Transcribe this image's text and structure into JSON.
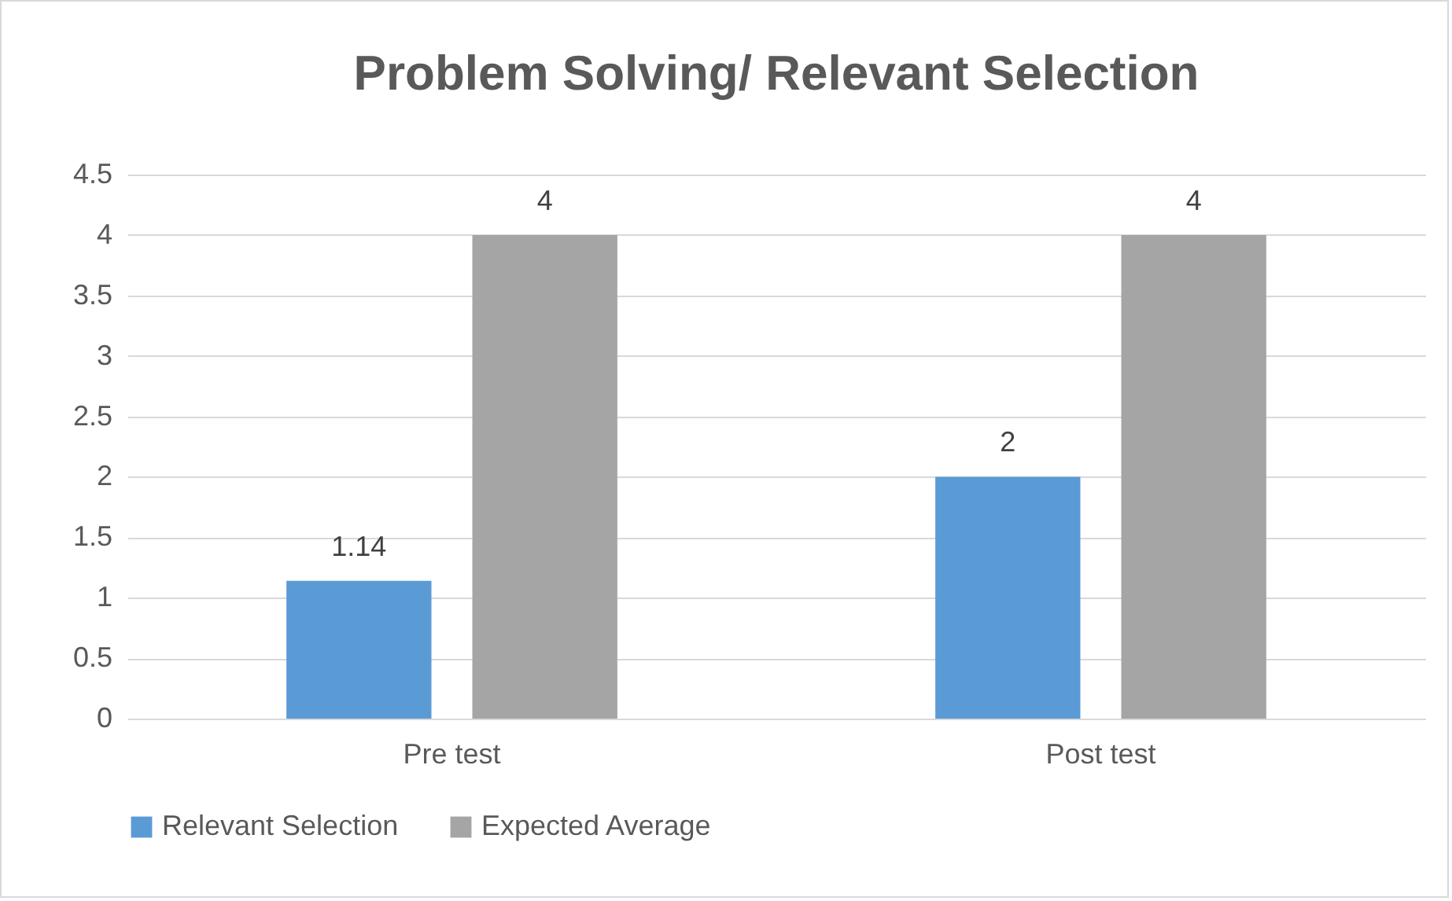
{
  "chart_data": {
    "type": "bar",
    "title": "Problem Solving/ Relevant Selection",
    "categories": [
      "Pre test",
      "Post test"
    ],
    "series": [
      {
        "name": "Relevant Selection",
        "color": "#5b9bd5",
        "values": [
          1.14,
          2
        ]
      },
      {
        "name": "Expected Average",
        "color": "#a5a5a5",
        "values": [
          4,
          4
        ]
      }
    ],
    "ylim": [
      0,
      4.5
    ],
    "yticks": [
      0,
      0.5,
      1,
      1.5,
      2,
      2.5,
      3,
      3.5,
      4,
      4.5
    ],
    "grid": "y",
    "legend": "bottom",
    "data_labels": true
  }
}
